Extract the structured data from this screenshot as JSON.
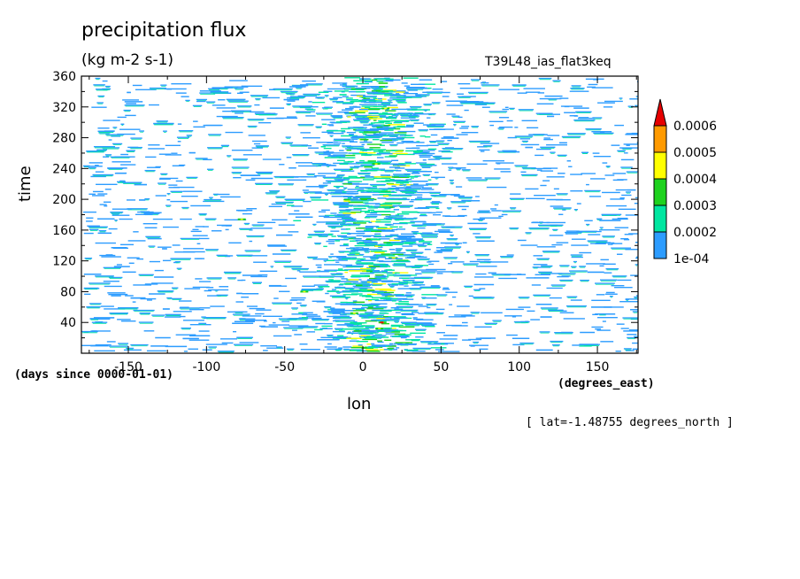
{
  "chart_data": {
    "type": "heatmap",
    "title": "precipitation flux",
    "units": "(kg m-2 s-1)",
    "run_label": "T39L48_ias_flat3keq",
    "xlabel": "lon",
    "xunits": "(degrees_east)",
    "ylabel": "time",
    "yunits": "(days since 0000-01-01)",
    "slice_label": "[ lat=-1.48755 degrees_north ]",
    "xlim": [
      -180,
      176
    ],
    "ylim": [
      0,
      360
    ],
    "x_ticks": [
      -150,
      -100,
      -50,
      0,
      50,
      100,
      150
    ],
    "x_tick_labels": [
      "-150",
      "-100",
      "-50",
      "0",
      "50",
      "100",
      "150"
    ],
    "y_ticks": [
      40,
      80,
      120,
      160,
      200,
      240,
      280,
      320,
      360
    ],
    "y_tick_labels": [
      "40",
      "80",
      "120",
      "160",
      "200",
      "240",
      "280",
      "320",
      "360"
    ],
    "levels": [
      0.0001,
      0.0002,
      0.0003,
      0.0004,
      0.0005,
      0.0006
    ],
    "level_labels": [
      "1e-04",
      "0.0002",
      "0.0003",
      "0.0004",
      "0.0005",
      "0.0006"
    ],
    "level_colors": [
      "#2c9cff",
      "#00e6a0",
      "#1ed21e",
      "#ffff00",
      "#ff9a00",
      "#e60000"
    ],
    "grid": false,
    "legend": "right"
  }
}
